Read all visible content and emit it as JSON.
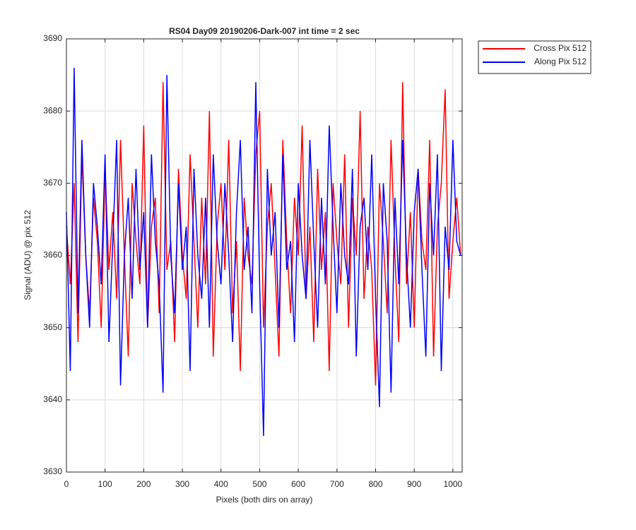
{
  "chart_data": {
    "type": "line",
    "title": "RS04 Day09 20190206-Dark-007 int time = 2 sec",
    "x_label": "Pixels (both dirs on array)",
    "y_label": "Signal (ADU) @ pix 512",
    "x": [
      0,
      10,
      20,
      30,
      40,
      50,
      60,
      70,
      80,
      90,
      100,
      110,
      120,
      130,
      140,
      150,
      160,
      170,
      180,
      190,
      200,
      210,
      220,
      230,
      240,
      250,
      260,
      270,
      280,
      290,
      300,
      310,
      320,
      330,
      340,
      350,
      360,
      370,
      380,
      390,
      400,
      410,
      420,
      430,
      440,
      450,
      460,
      470,
      480,
      490,
      500,
      510,
      520,
      530,
      540,
      550,
      560,
      570,
      580,
      590,
      600,
      610,
      620,
      630,
      640,
      650,
      660,
      670,
      680,
      690,
      700,
      710,
      720,
      730,
      740,
      750,
      760,
      770,
      780,
      790,
      800,
      810,
      820,
      830,
      840,
      850,
      860,
      870,
      880,
      890,
      900,
      910,
      920,
      930,
      940,
      950,
      960,
      970,
      980,
      990,
      1000,
      1010,
      1020
    ],
    "series": [
      {
        "name": "Cross Pix 512",
        "color": "#ff0000",
        "values": [
          3664,
          3656,
          3670,
          3648,
          3674,
          3660,
          3652,
          3668,
          3662,
          3650,
          3672,
          3658,
          3666,
          3654,
          3676,
          3660,
          3646,
          3670,
          3662,
          3656,
          3678,
          3650,
          3664,
          3668,
          3652,
          3684,
          3658,
          3662,
          3648,
          3672,
          3660,
          3654,
          3674,
          3662,
          3650,
          3668,
          3656,
          3680,
          3646,
          3664,
          3670,
          3658,
          3676,
          3652,
          3662,
          3644,
          3668,
          3660,
          3656,
          3674,
          3680,
          3650,
          3664,
          3670,
          3658,
          3646,
          3676,
          3662,
          3652,
          3668,
          3660,
          3678,
          3654,
          3664,
          3648,
          3672,
          3658,
          3666,
          3644,
          3670,
          3662,
          3656,
          3674,
          3650,
          3668,
          3660,
          3680,
          3654,
          3664,
          3658,
          3642,
          3670,
          3662,
          3652,
          3676,
          3660,
          3648,
          3684,
          3656,
          3666,
          3650,
          3672,
          3662,
          3658,
          3676,
          3646,
          3664,
          3670,
          3683,
          3654,
          3662,
          3668,
          3660
        ]
      },
      {
        "name": "Along Pix 512",
        "color": "#0000ff",
        "values": [
          3666,
          3644,
          3686,
          3652,
          3676,
          3660,
          3650,
          3670,
          3664,
          3656,
          3674,
          3648,
          3662,
          3676,
          3642,
          3660,
          3668,
          3654,
          3672,
          3658,
          3666,
          3650,
          3674,
          3662,
          3656,
          3641,
          3685,
          3660,
          3652,
          3670,
          3658,
          3664,
          3644,
          3672,
          3660,
          3654,
          3668,
          3650,
          3674,
          3662,
          3656,
          3670,
          3660,
          3648,
          3666,
          3676,
          3658,
          3664,
          3652,
          3684,
          3656,
          3635,
          3672,
          3660,
          3666,
          3650,
          3674,
          3658,
          3662,
          3648,
          3670,
          3660,
          3654,
          3676,
          3662,
          3650,
          3668,
          3656,
          3678,
          3664,
          3652,
          3670,
          3660,
          3656,
          3672,
          3646,
          3664,
          3668,
          3658,
          3674,
          3654,
          3639,
          3670,
          3662,
          3641,
          3668,
          3656,
          3676,
          3660,
          3650,
          3666,
          3672,
          3658,
          3646,
          3670,
          3660,
          3674,
          3644,
          3664,
          3658,
          3676,
          3662,
          3660
        ]
      }
    ],
    "xlim": [
      0,
      1024
    ],
    "xticks": [
      0,
      100,
      200,
      300,
      400,
      500,
      600,
      700,
      800,
      900,
      1000
    ],
    "ylim": [
      3630,
      3690
    ],
    "yticks": [
      3630,
      3640,
      3650,
      3660,
      3670,
      3680,
      3690
    ],
    "grid": true,
    "legend": "northeastoutside"
  }
}
